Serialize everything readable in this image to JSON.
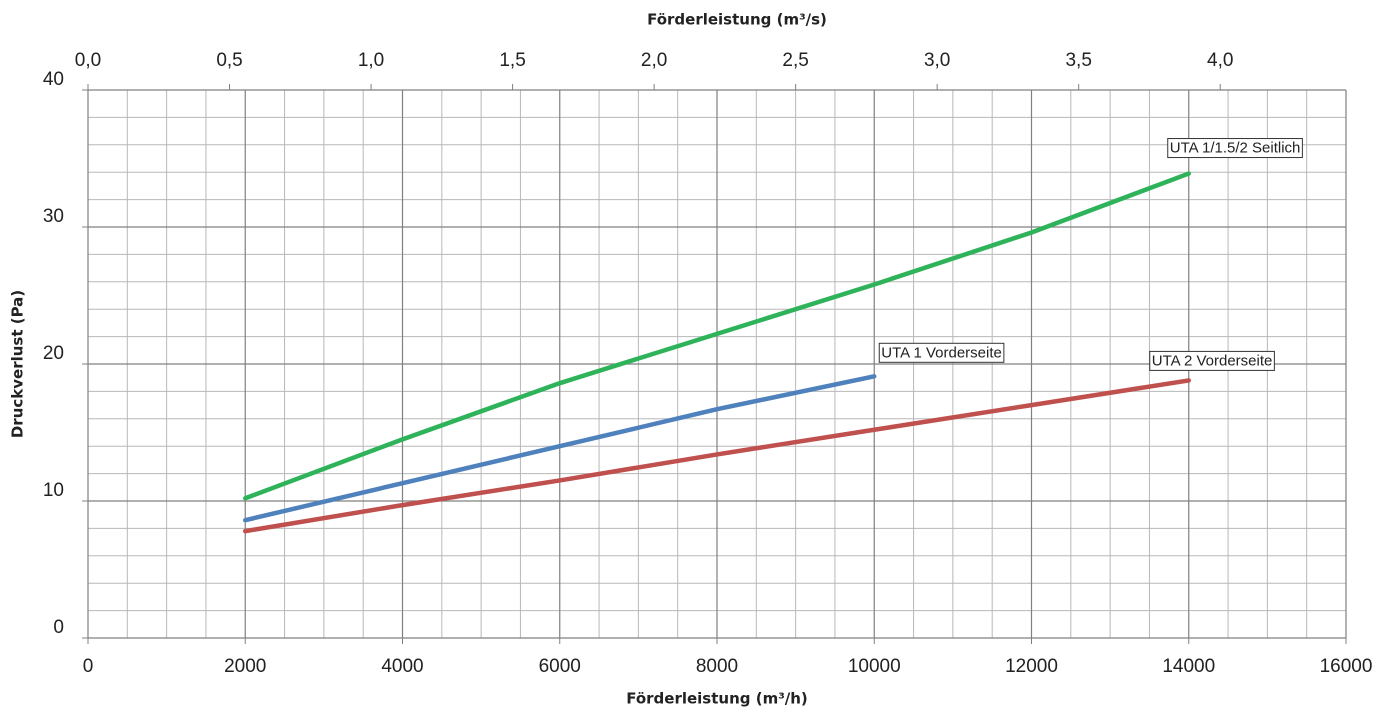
{
  "chart_data": {
    "type": "line",
    "xlabel": "Förderleistung (m³/h)",
    "x2label": "Förderleistung (m³/s)",
    "ylabel": "Druckverlust (Pa)",
    "x": [
      2000,
      4000,
      6000,
      8000,
      10000,
      12000,
      14000
    ],
    "series": [
      {
        "name": "UTA 1/1.5/2 Seitlich",
        "color": "#2fb35a",
        "values": [
          10.2,
          14.5,
          18.6,
          22.2,
          25.8,
          29.6,
          33.9
        ]
      },
      {
        "name": "UTA 1 Vorderseite",
        "color": "#4f81bd",
        "values": [
          8.6,
          11.3,
          14.0,
          16.7,
          19.1,
          null,
          null
        ]
      },
      {
        "name": "UTA 2 Vorderseite",
        "color": "#c0504d",
        "values": [
          7.8,
          9.7,
          11.5,
          13.4,
          15.2,
          17.0,
          18.8
        ]
      }
    ],
    "xlim": [
      0,
      16000
    ],
    "xticks": [
      0,
      2000,
      4000,
      6000,
      8000,
      10000,
      12000,
      14000,
      16000
    ],
    "x2lim": [
      0,
      4.4444
    ],
    "x2ticks": [
      {
        "value": 0,
        "label": "0,0"
      },
      {
        "value": 0.5,
        "label": "0,5"
      },
      {
        "value": 1,
        "label": "1,0"
      },
      {
        "value": 1.5,
        "label": "1,5"
      },
      {
        "value": 2,
        "label": "2,0"
      },
      {
        "value": 2.5,
        "label": "2,5"
      },
      {
        "value": 3,
        "label": "3,0"
      },
      {
        "value": 3.5,
        "label": "3,5"
      },
      {
        "value": 4,
        "label": "4,0"
      }
    ],
    "ylim": [
      0,
      40
    ],
    "yticks": [
      0,
      10,
      20,
      30,
      40
    ],
    "grid": true
  }
}
